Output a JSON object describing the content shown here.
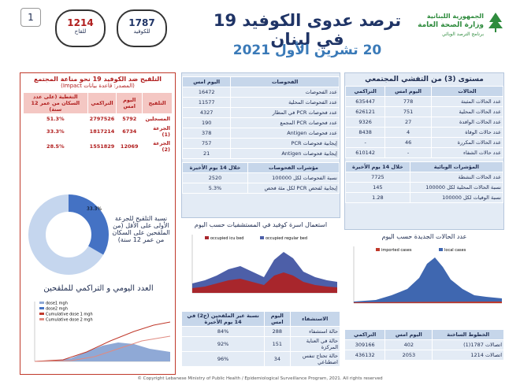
{
  "header": {
    "page": "1",
    "ministry": [
      "الجمهورية اللبنانية",
      "وزارة الصحة العامة",
      "برنامج الترصد الوبائي"
    ],
    "title": "ترصد عدوى الكوفيد 19 في لبنان",
    "date": "20 تشرين الأول 2021",
    "hotlines": [
      {
        "number": "1787",
        "label": "للكوفيد"
      },
      {
        "number": "1214",
        "label": "للقاح"
      }
    ]
  },
  "cases": {
    "title": "مستوى (3) من التفشي المجتمعي",
    "table": {
      "header": [
        "الحالات",
        "اليوم امس",
        "التراكمي"
      ],
      "rows": [
        [
          "عدد الحالات المثبتة",
          778,
          635447
        ],
        [
          "عدد الحالات المحلية",
          751,
          626121
        ],
        [
          "عدد الحالات الوافدة",
          27,
          9326
        ],
        [
          "عدد حالات الوفاة",
          4,
          8438
        ],
        [
          "عدد الحالات المكررة",
          46,
          "-"
        ],
        [
          "عدد حالات الشفاء",
          "-",
          610142
        ]
      ]
    },
    "indicators": {
      "header": [
        "المؤشرات الوبائية",
        "خلال 14 يوم الأخيرة"
      ],
      "rows": [
        [
          "عدد الحالات النشطة",
          7725
        ],
        [
          "نسبة الحالات المحلية لكل 100000",
          145
        ],
        [
          "نسبة الوفيات لكل 100000",
          1.28
        ]
      ]
    }
  },
  "tests": {
    "table": {
      "header": [
        "الفحوصات",
        "اليوم امس"
      ],
      "rows": [
        [
          "عدد الفحوصات",
          16472
        ],
        [
          "عدد الفحوصات المحلية",
          11577
        ],
        [
          "عدد فحوصات PCR في المطار",
          4327
        ],
        [
          "عدد فحوصات PCR المجمع",
          190
        ],
        [
          "عدد فحوصات Antigen",
          378
        ],
        [
          "إيجابية فحوصات PCR",
          757
        ],
        [
          "إيجابية فحوصات Antigen",
          21
        ]
      ]
    },
    "indicators": {
      "header": [
        "مؤشرات الفحوصات",
        "خلال 14 يوم الأخيرة"
      ],
      "rows": [
        [
          "نسبة الفحوصات لكل 100000",
          2520
        ],
        [
          "إيجابية لفحص PCR لكل مئة فحص",
          "5.3%"
        ]
      ]
    }
  },
  "beds_chart": {
    "title": "استعمال اسرة كوفيد في المستشفيات حسب اليوم",
    "legend": [
      "occupied icu bed",
      "occupied regular bed"
    ]
  },
  "new_cases_chart": {
    "title": "عدد الحالات الجديدة حسب اليوم",
    "legend": [
      "imported cases",
      "local cases"
    ]
  },
  "hospital": {
    "header": [
      "الاستشفاء",
      "اليوم امس",
      "نسبة غير الملقحين (ج2) في 14 يوم الأخيرة"
    ],
    "rows": [
      [
        "حالة استشفاء",
        288,
        "84%"
      ],
      [
        "حالة في العناية المركزة",
        151,
        "92%"
      ],
      [
        "حالة تحتاج تنفس اصطناعي",
        34,
        "96%"
      ]
    ]
  },
  "hotline_calls": {
    "header": [
      "الخطوط الساخنة",
      "اليوم امس",
      "التراكمي"
    ],
    "rows": [
      [
        "اتصالات 1787(1)",
        402,
        309166
      ],
      [
        "اتصالات 1214",
        2053,
        436132
      ]
    ]
  },
  "vaccination": {
    "title": "التلقيح ضد الكوفيد 19 نحو مناعة المجتمع",
    "source": "(المصدر: قاعدة بيانات Impact)",
    "table": {
      "header": [
        "التلقيح",
        "اليوم امس",
        "التراكمي",
        "التغطية (على عدد السكان من عمر 12 سنة)"
      ],
      "rows": [
        [
          "المسجلين",
          5792,
          2797526,
          "51.3%"
        ],
        [
          "الجرعة (1)",
          6734,
          1817214,
          "33.3%"
        ],
        [
          "الجرعة (2)",
          12069,
          1551829,
          "28.5%"
        ]
      ]
    },
    "donut": {
      "value": 33.3,
      "label": "33.3%",
      "caption": "نسبة التلقيح للجرعة الأولى على الأقل (من الملقحين على السكان من عمر 12 سنة)"
    },
    "daily_chart": {
      "title": "العدد اليومي و التراكمي للملقحين",
      "legend": [
        "dose1 mgh",
        "dose2 mgh",
        "Cumulative dose 1 mgh",
        "Cumulative dose 2 mgh"
      ]
    }
  },
  "footer": "© Copyright Lebanese Ministry of Public Health / Epidemiological Surveillance Program, 2021. All rights reserved"
}
